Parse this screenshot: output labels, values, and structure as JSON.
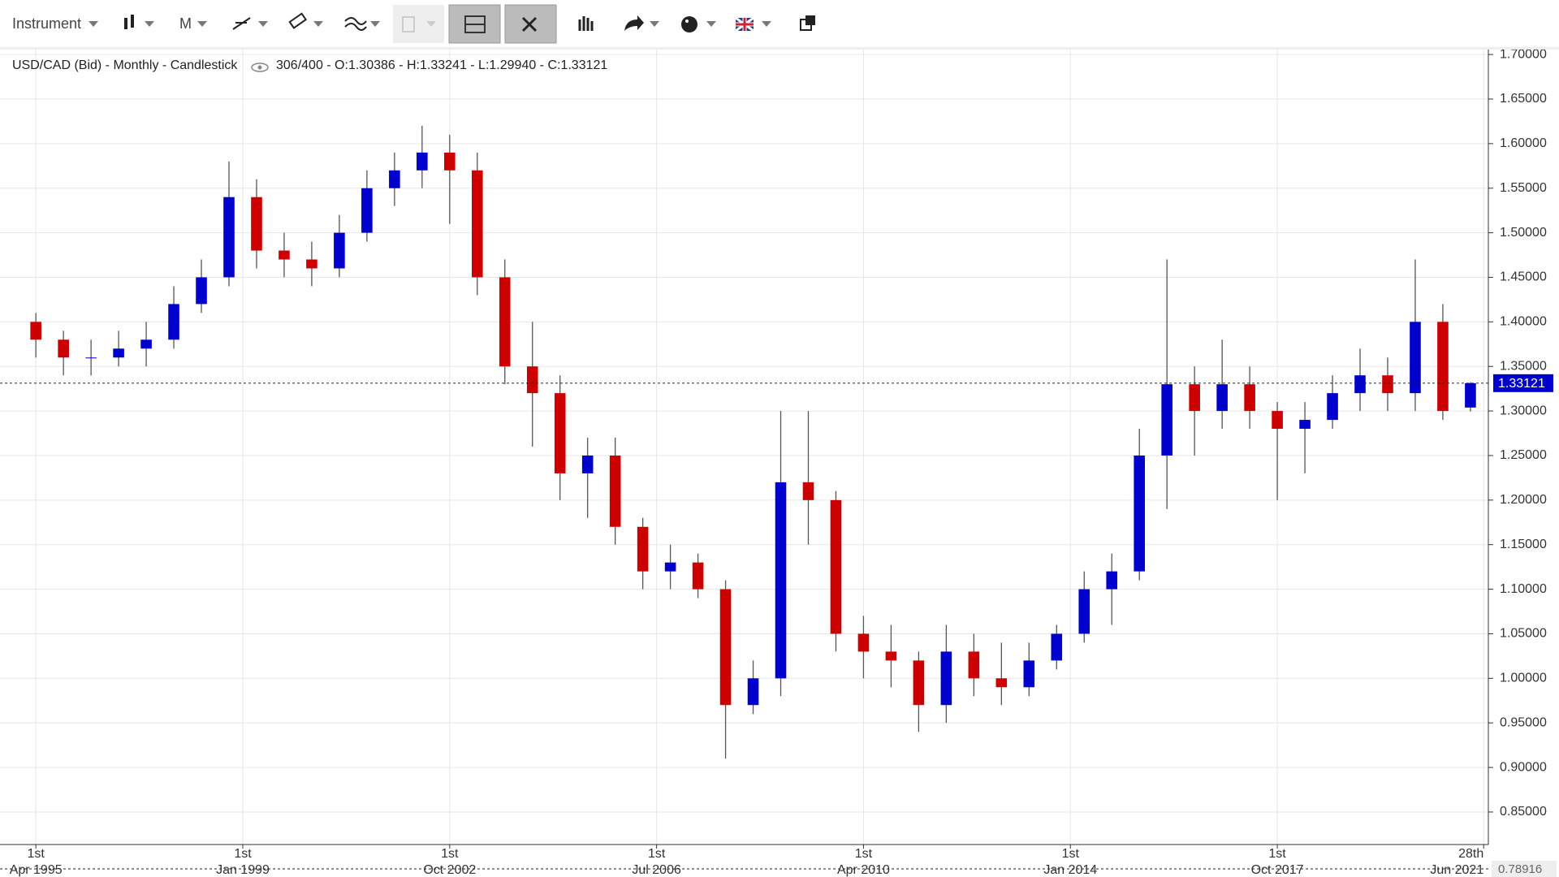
{
  "toolbar": {
    "instrument": "Instrument",
    "period": "M"
  },
  "chart_data": {
    "type": "candlestick",
    "title": "USD/CAD (Bid) - Monthly - Candlestick",
    "info": "306/400 - O:1.30386 - H:1.33241 - L:1.29940 - C:1.33121",
    "up_color": "#0000cc",
    "down_color": "#cc0000",
    "wick_color": "#555555",
    "grid": true,
    "x": [
      1995.25,
      1995.75,
      1996.25,
      1996.75,
      1997.25,
      1997.75,
      1998.25,
      1998.75,
      1999.25,
      1999.75,
      2000.25,
      2000.75,
      2001.25,
      2001.75,
      2002.25,
      2002.75,
      2003.25,
      2003.75,
      2004.25,
      2004.75,
      2005.25,
      2005.75,
      2006.25,
      2006.75,
      2007.25,
      2007.75,
      2008.25,
      2008.75,
      2009.25,
      2009.75,
      2010.25,
      2010.75,
      2011.25,
      2011.75,
      2012.25,
      2012.75,
      2013.25,
      2013.75,
      2014.25,
      2014.75,
      2015.25,
      2015.75,
      2016.25,
      2016.75,
      2017.25,
      2017.75,
      2018.25,
      2018.75,
      2019.25,
      2019.75,
      2020.25,
      2020.75,
      2021.25
    ],
    "open": [
      1.4,
      1.38,
      1.36,
      1.36,
      1.37,
      1.38,
      1.42,
      1.45,
      1.54,
      1.48,
      1.47,
      1.46,
      1.5,
      1.55,
      1.57,
      1.59,
      1.57,
      1.45,
      1.35,
      1.32,
      1.23,
      1.25,
      1.17,
      1.12,
      1.13,
      1.1,
      0.97,
      1.0,
      1.22,
      1.2,
      1.05,
      1.03,
      1.02,
      0.97,
      1.03,
      1.0,
      0.99,
      1.02,
      1.05,
      1.1,
      1.12,
      1.25,
      1.33,
      1.3,
      1.33,
      1.3,
      1.28,
      1.29,
      1.32,
      1.34,
      1.32,
      1.4,
      1.30386
    ],
    "high": [
      1.41,
      1.39,
      1.38,
      1.39,
      1.4,
      1.44,
      1.47,
      1.58,
      1.56,
      1.5,
      1.49,
      1.52,
      1.57,
      1.59,
      1.62,
      1.61,
      1.59,
      1.47,
      1.4,
      1.34,
      1.27,
      1.27,
      1.18,
      1.15,
      1.14,
      1.11,
      1.02,
      1.3,
      1.3,
      1.21,
      1.07,
      1.06,
      1.03,
      1.06,
      1.05,
      1.04,
      1.04,
      1.06,
      1.12,
      1.14,
      1.28,
      1.47,
      1.35,
      1.38,
      1.35,
      1.31,
      1.31,
      1.34,
      1.37,
      1.36,
      1.47,
      1.42,
      1.33241
    ],
    "low": [
      1.36,
      1.34,
      1.34,
      1.35,
      1.35,
      1.37,
      1.41,
      1.44,
      1.46,
      1.45,
      1.44,
      1.45,
      1.49,
      1.53,
      1.55,
      1.51,
      1.43,
      1.33,
      1.26,
      1.2,
      1.18,
      1.15,
      1.1,
      1.1,
      1.09,
      0.91,
      0.96,
      0.98,
      1.15,
      1.03,
      1.0,
      0.99,
      0.94,
      0.95,
      0.98,
      0.97,
      0.98,
      1.01,
      1.04,
      1.06,
      1.11,
      1.19,
      1.25,
      1.28,
      1.28,
      1.2,
      1.23,
      1.28,
      1.3,
      1.3,
      1.3,
      1.29,
      1.2994
    ],
    "close": [
      1.38,
      1.36,
      1.36,
      1.37,
      1.38,
      1.42,
      1.45,
      1.54,
      1.48,
      1.47,
      1.46,
      1.5,
      1.55,
      1.57,
      1.59,
      1.57,
      1.45,
      1.35,
      1.32,
      1.23,
      1.25,
      1.17,
      1.12,
      1.13,
      1.1,
      0.97,
      1.0,
      1.22,
      1.2,
      1.05,
      1.03,
      1.02,
      0.97,
      1.03,
      1.0,
      0.99,
      1.02,
      1.05,
      1.1,
      1.12,
      1.25,
      1.33,
      1.3,
      1.33,
      1.3,
      1.28,
      1.29,
      1.32,
      1.34,
      1.32,
      1.4,
      1.3,
      1.33121
    ],
    "last_price": 1.33121,
    "cursor_value_label": "0.78916",
    "xlim": [
      1994.6,
      2021.575
    ],
    "xticks": [
      {
        "value": 1995.25,
        "label": "1st Apr 1995"
      },
      {
        "value": 1999.0,
        "label": "1st Jan 1999"
      },
      {
        "value": 2002.75,
        "label": "1st Oct 2002"
      },
      {
        "value": 2006.5,
        "label": "1st Jul 2006"
      },
      {
        "value": 2010.25,
        "label": "1st Apr 2010"
      },
      {
        "value": 2014.0,
        "label": "1st Jan 2014"
      },
      {
        "value": 2017.75,
        "label": "1st Oct 2017"
      },
      {
        "value": 2021.49,
        "label": "28th Jun 2021"
      }
    ],
    "ylim": [
      0.8135,
      1.7065
    ],
    "yticks": [
      {
        "value": 0.85,
        "label": "0.85000"
      },
      {
        "value": 0.9,
        "label": "0.90000"
      },
      {
        "value": 0.95,
        "label": "0.95000"
      },
      {
        "value": 1.0,
        "label": "1.00000"
      },
      {
        "value": 1.05,
        "label": "1.05000"
      },
      {
        "value": 1.1,
        "label": "1.10000"
      },
      {
        "value": 1.15,
        "label": "1.15000"
      },
      {
        "value": 1.2,
        "label": "1.20000"
      },
      {
        "value": 1.25,
        "label": "1.25000"
      },
      {
        "value": 1.3,
        "label": "1.30000"
      },
      {
        "value": 1.35,
        "label": "1.35000"
      },
      {
        "value": 1.4,
        "label": "1.40000"
      },
      {
        "value": 1.45,
        "label": "1.45000"
      },
      {
        "value": 1.5,
        "label": "1.50000"
      },
      {
        "value": 1.55,
        "label": "1.55000"
      },
      {
        "value": 1.6,
        "label": "1.60000"
      },
      {
        "value": 1.65,
        "label": "1.65000"
      },
      {
        "value": 1.7,
        "label": "1.70000"
      }
    ]
  }
}
